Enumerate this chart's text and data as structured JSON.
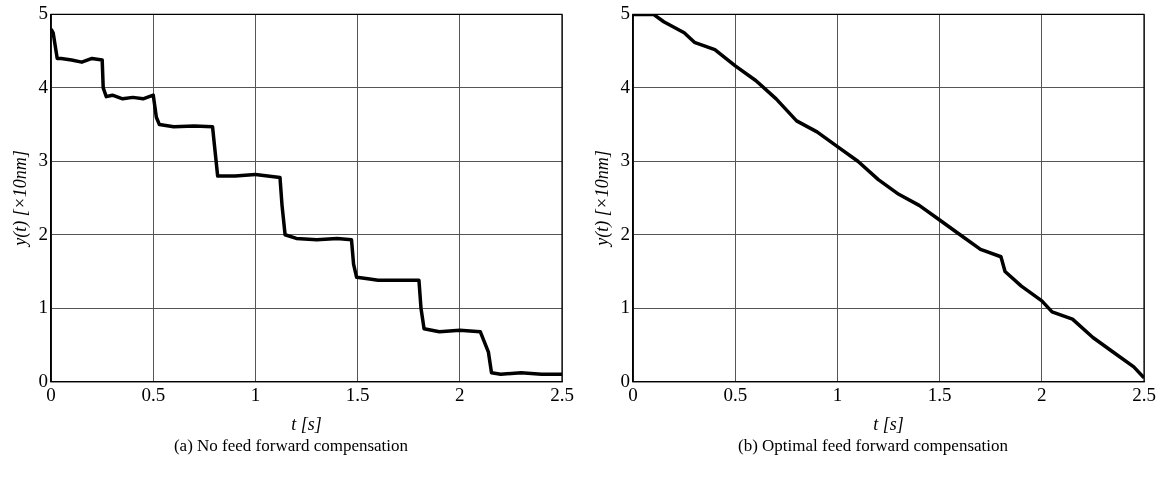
{
  "chart_data": [
    {
      "type": "line",
      "xlabel": "t [s]",
      "ylabel": "y(t) [×10nm]",
      "annotations": [
        "(a) No feed forward compensation"
      ],
      "series": [
        {
          "color": "#000000",
          "x": [
            0,
            0.01,
            0.03,
            0.05,
            0.1,
            0.15,
            0.2,
            0.25,
            0.255,
            0.27,
            0.3,
            0.35,
            0.4,
            0.45,
            0.5,
            0.515,
            0.53,
            0.6,
            0.7,
            0.79,
            0.8,
            0.815,
            0.9,
            1.0,
            1.12,
            1.13,
            1.145,
            1.2,
            1.3,
            1.4,
            1.47,
            1.48,
            1.495,
            1.55,
            1.6,
            1.7,
            1.8,
            1.81,
            1.825,
            1.9,
            2.0,
            2.1,
            2.14,
            2.155,
            2.2,
            2.3,
            2.4,
            2.5
          ],
          "values": [
            4.8,
            4.75,
            4.4,
            4.4,
            4.38,
            4.35,
            4.4,
            4.38,
            4.0,
            3.88,
            3.9,
            3.85,
            3.87,
            3.85,
            3.9,
            3.6,
            3.5,
            3.47,
            3.48,
            3.47,
            3.2,
            2.8,
            2.8,
            2.82,
            2.78,
            2.4,
            2.0,
            1.95,
            1.93,
            1.95,
            1.93,
            1.6,
            1.42,
            1.4,
            1.38,
            1.38,
            1.38,
            1.0,
            0.72,
            0.68,
            0.7,
            0.68,
            0.4,
            0.12,
            0.1,
            0.12,
            0.1,
            0.1
          ]
        }
      ],
      "xlim": [
        0,
        2.5
      ],
      "ylim": [
        0,
        5
      ],
      "xticks": [
        0,
        0.5,
        1,
        1.5,
        2,
        2.5
      ],
      "yticks": [
        0,
        1,
        2,
        3,
        4,
        5
      ],
      "grid": true,
      "line_style": "solid"
    },
    {
      "type": "line",
      "xlabel": "t [s]",
      "ylabel": "y(t) [×10nm]",
      "annotations": [
        "(b) Optimal feed forward compensation"
      ],
      "series": [
        {
          "color": "#000000",
          "x": [
            0,
            0.1,
            0.15,
            0.25,
            0.3,
            0.4,
            0.5,
            0.6,
            0.7,
            0.8,
            0.9,
            1.0,
            1.1,
            1.2,
            1.3,
            1.4,
            1.5,
            1.6,
            1.7,
            1.8,
            1.82,
            1.9,
            2.0,
            2.05,
            2.15,
            2.25,
            2.35,
            2.45,
            2.5
          ],
          "values": [
            5.0,
            5.0,
            4.9,
            4.75,
            4.62,
            4.52,
            4.3,
            4.1,
            3.85,
            3.55,
            3.4,
            3.2,
            3.0,
            2.75,
            2.55,
            2.4,
            2.2,
            2.0,
            1.8,
            1.7,
            1.5,
            1.3,
            1.1,
            0.95,
            0.85,
            0.6,
            0.4,
            0.2,
            0.05
          ]
        }
      ],
      "xlim": [
        0,
        2.5
      ],
      "ylim": [
        0,
        5
      ],
      "xticks": [
        0,
        0.5,
        1,
        1.5,
        2,
        2.5
      ],
      "yticks": [
        0,
        1,
        2,
        3,
        4,
        5
      ],
      "grid": true,
      "line_style": "solid"
    }
  ]
}
